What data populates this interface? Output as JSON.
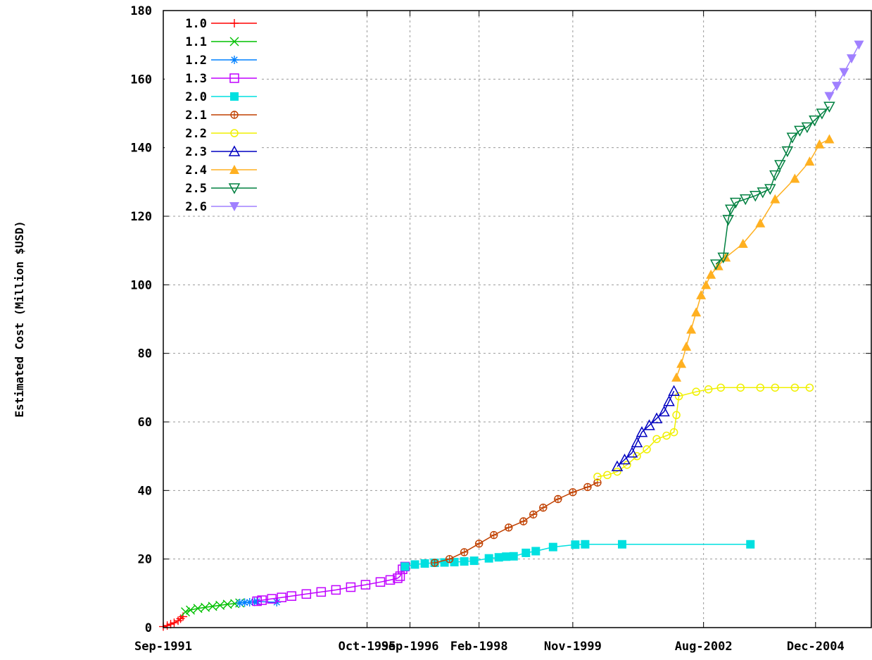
{
  "chart_data": {
    "type": "line",
    "title": "",
    "xlabel": "",
    "ylabel": "Estimated Cost (Million $USD)",
    "x_tick_labels": [
      "Sep-1991",
      "Oct-1995",
      "Sep-1996",
      "Feb-1998",
      "Nov-1999",
      "Aug-2002",
      "Dec-2004"
    ],
    "y_ticks": [
      0,
      20,
      40,
      60,
      80,
      100,
      120,
      140,
      160,
      180
    ],
    "ylim": [
      0,
      180
    ],
    "grid": true,
    "legend_position": "top-left",
    "series": [
      {
        "name": "1.0",
        "color": "#ff0000",
        "marker": "plus",
        "points": [
          [
            1991.7,
            0.3
          ],
          [
            1991.78,
            0.6
          ],
          [
            1991.85,
            1.0
          ],
          [
            1991.92,
            1.4
          ],
          [
            1992.0,
            2.0
          ],
          [
            1992.05,
            2.6
          ],
          [
            1992.1,
            3.2
          ]
        ]
      },
      {
        "name": "1.1",
        "color": "#00c000",
        "marker": "x",
        "points": [
          [
            1992.15,
            4.6
          ],
          [
            1992.25,
            5.1
          ],
          [
            1992.4,
            5.6
          ],
          [
            1992.55,
            5.9
          ],
          [
            1992.7,
            6.2
          ],
          [
            1992.85,
            6.5
          ],
          [
            1993.0,
            6.8
          ],
          [
            1993.15,
            7.0
          ],
          [
            1993.25,
            7.2
          ]
        ]
      },
      {
        "name": "1.2",
        "color": "#0080ff",
        "marker": "star",
        "points": [
          [
            1993.25,
            7.2
          ],
          [
            1993.35,
            7.3
          ],
          [
            1993.45,
            7.4
          ],
          [
            1993.55,
            7.5
          ],
          [
            1993.6,
            7.6
          ],
          [
            1994.0,
            7.4
          ]
        ]
      },
      {
        "name": "1.3",
        "color": "#c000ff",
        "marker": "square-open",
        "points": [
          [
            1993.6,
            7.7
          ],
          [
            1993.7,
            8.0
          ],
          [
            1993.9,
            8.4
          ],
          [
            1994.1,
            8.8
          ],
          [
            1994.3,
            9.2
          ],
          [
            1994.6,
            9.8
          ],
          [
            1994.9,
            10.4
          ],
          [
            1995.2,
            11.0
          ],
          [
            1995.5,
            11.8
          ],
          [
            1995.8,
            12.5
          ],
          [
            1996.1,
            13.3
          ],
          [
            1996.3,
            13.9
          ],
          [
            1996.45,
            14.4
          ],
          [
            1996.5,
            15.0
          ],
          [
            1996.55,
            17.0
          ],
          [
            1996.6,
            17.8
          ]
        ]
      },
      {
        "name": "2.0",
        "color": "#00e0e0",
        "marker": "square-filled",
        "points": [
          [
            1996.6,
            17.8
          ],
          [
            1996.8,
            18.4
          ],
          [
            1997.0,
            18.7
          ],
          [
            1997.2,
            18.9
          ],
          [
            1997.4,
            19.0
          ],
          [
            1997.6,
            19.1
          ],
          [
            1997.8,
            19.3
          ],
          [
            1998.0,
            19.5
          ],
          [
            1998.3,
            20.2
          ],
          [
            1998.5,
            20.5
          ],
          [
            1998.65,
            20.7
          ],
          [
            1998.8,
            20.8
          ],
          [
            1999.05,
            21.8
          ],
          [
            1999.25,
            22.3
          ],
          [
            1999.6,
            23.5
          ],
          [
            2000.05,
            24.2
          ],
          [
            2000.25,
            24.3
          ],
          [
            2001.0,
            24.3
          ],
          [
            2003.6,
            24.3
          ]
        ]
      },
      {
        "name": "2.1",
        "color": "#c04000",
        "marker": "circle-plus",
        "points": [
          [
            1997.2,
            18.9
          ],
          [
            1997.5,
            20.0
          ],
          [
            1997.8,
            22.0
          ],
          [
            1998.1,
            24.5
          ],
          [
            1998.4,
            27.0
          ],
          [
            1998.7,
            29.2
          ],
          [
            1999.0,
            31.0
          ],
          [
            1999.2,
            33.0
          ],
          [
            1999.4,
            35.0
          ],
          [
            1999.7,
            37.5
          ],
          [
            2000.0,
            39.5
          ],
          [
            2000.3,
            41.0
          ],
          [
            2000.5,
            42.3
          ]
        ]
      },
      {
        "name": "2.2",
        "color": "#f0f000",
        "marker": "circle-open",
        "points": [
          [
            2000.5,
            44.0
          ],
          [
            2000.7,
            44.5
          ],
          [
            2000.9,
            45.5
          ],
          [
            2001.1,
            47.5
          ],
          [
            2001.3,
            50.0
          ],
          [
            2001.5,
            52.0
          ],
          [
            2001.7,
            55.0
          ],
          [
            2001.9,
            56.0
          ],
          [
            2002.05,
            57.0
          ],
          [
            2002.1,
            62.0
          ],
          [
            2002.15,
            67.5
          ],
          [
            2002.5,
            68.8
          ],
          [
            2002.75,
            69.5
          ],
          [
            2003.0,
            70.0
          ],
          [
            2003.4,
            70.0
          ],
          [
            2003.8,
            70.0
          ],
          [
            2004.1,
            70.0
          ],
          [
            2004.5,
            70.0
          ],
          [
            2004.8,
            70.0
          ]
        ]
      },
      {
        "name": "2.3",
        "color": "#0000c0",
        "marker": "triangle-open",
        "points": [
          [
            2000.9,
            47.0
          ],
          [
            2001.05,
            49.0
          ],
          [
            2001.2,
            51.0
          ],
          [
            2001.3,
            54.0
          ],
          [
            2001.4,
            57.0
          ],
          [
            2001.55,
            59.0
          ],
          [
            2001.7,
            61.0
          ],
          [
            2001.85,
            63.0
          ],
          [
            2001.95,
            66.0
          ],
          [
            2002.05,
            69.0
          ]
        ]
      },
      {
        "name": "2.4",
        "color": "#ffb020",
        "marker": "triangle-filled",
        "points": [
          [
            2002.1,
            73.0
          ],
          [
            2002.2,
            77.0
          ],
          [
            2002.3,
            82.0
          ],
          [
            2002.4,
            87.0
          ],
          [
            2002.5,
            92.0
          ],
          [
            2002.6,
            97.0
          ],
          [
            2002.7,
            100.0
          ],
          [
            2002.8,
            103.0
          ],
          [
            2002.95,
            105.5
          ],
          [
            2003.1,
            108.0
          ],
          [
            2003.45,
            112.0
          ],
          [
            2003.8,
            118.0
          ],
          [
            2004.1,
            125.0
          ],
          [
            2004.5,
            131.0
          ],
          [
            2004.8,
            136.0
          ],
          [
            2005.0,
            141.0
          ],
          [
            2005.2,
            142.5
          ]
        ]
      },
      {
        "name": "2.5",
        "color": "#008040",
        "marker": "triangle-down-open",
        "points": [
          [
            2002.9,
            106.0
          ],
          [
            2003.05,
            108.0
          ],
          [
            2003.15,
            119.0
          ],
          [
            2003.2,
            122.0
          ],
          [
            2003.3,
            124.0
          ],
          [
            2003.5,
            125.0
          ],
          [
            2003.7,
            126.0
          ],
          [
            2003.85,
            127.0
          ],
          [
            2004.0,
            128.0
          ],
          [
            2004.1,
            132.0
          ],
          [
            2004.2,
            135.0
          ],
          [
            2004.35,
            139.0
          ],
          [
            2004.45,
            143.0
          ],
          [
            2004.6,
            145.0
          ],
          [
            2004.75,
            146.0
          ],
          [
            2004.9,
            148.0
          ],
          [
            2005.05,
            150.0
          ],
          [
            2005.2,
            152.0
          ]
        ]
      },
      {
        "name": "2.6",
        "color": "#a080ff",
        "marker": "triangle-down-filled",
        "points": [
          [
            2005.2,
            155.0
          ],
          [
            2005.35,
            158.0
          ],
          [
            2005.5,
            162.0
          ],
          [
            2005.65,
            166.0
          ],
          [
            2005.8,
            170.0
          ]
        ]
      }
    ]
  }
}
